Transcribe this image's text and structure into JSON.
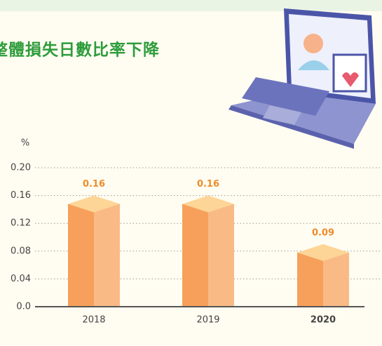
{
  "chart_data": {
    "type": "bar",
    "title": "整體損失日數比率下降",
    "y_label": "%",
    "categories": [
      "2018",
      "2019",
      "2020"
    ],
    "values": [
      0.16,
      0.16,
      0.09
    ],
    "ylim": [
      0,
      0.2
    ],
    "yticks": [
      {
        "value": 0,
        "label": "0.0"
      },
      0.04,
      0.08,
      0.12,
      0.16,
      {
        "value": 0.2,
        "label": "0.20"
      }
    ],
    "grid": true,
    "colors": {
      "front": "#f6a05b",
      "side": "#f9ba86",
      "top": "#fdd597"
    }
  }
}
